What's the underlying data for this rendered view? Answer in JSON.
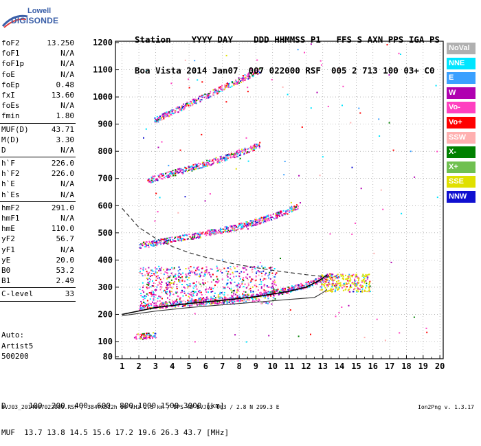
{
  "logo": {
    "line1": "Lowell",
    "line2": "DIGISONDE"
  },
  "header": {
    "line1": "Station    YYYY DAY    DDD HHMMSS P1   FFS S AXN PPS IGA PS",
    "line2": "Boa Vista 2014 Jan07  007 022000 RSF  005 2 713 100 03+ C0"
  },
  "params": [
    {
      "label": "foF2",
      "value": "13.250"
    },
    {
      "label": "foF1",
      "value": "N/A"
    },
    {
      "label": "foF1p",
      "value": "N/A"
    },
    {
      "label": "foE",
      "value": "N/A"
    },
    {
      "label": "foEp",
      "value": "0.48"
    },
    {
      "label": "fxI",
      "value": "13.60"
    },
    {
      "label": "foEs",
      "value": "N/A"
    },
    {
      "label": "fmin",
      "value": "1.80"
    },
    {
      "sep": true
    },
    {
      "label": "MUF(D)",
      "value": "43.71"
    },
    {
      "label": "M(D)",
      "value": "3.30"
    },
    {
      "label": "D",
      "value": "N/A"
    },
    {
      "sep": true
    },
    {
      "label": "h`F",
      "value": "226.0"
    },
    {
      "label": "h`F2",
      "value": "226.0"
    },
    {
      "label": "h`E",
      "value": "N/A"
    },
    {
      "label": "h`Es",
      "value": "N/A"
    },
    {
      "sep": true
    },
    {
      "label": "hmF2",
      "value": "291.0"
    },
    {
      "label": "hmF1",
      "value": "N/A"
    },
    {
      "label": "hmE",
      "value": "110.0"
    },
    {
      "label": "yF2",
      "value": "56.7"
    },
    {
      "label": "yF1",
      "value": "N/A"
    },
    {
      "label": "yE",
      "value": "20.0"
    },
    {
      "label": "B0",
      "value": "53.2"
    },
    {
      "label": "B1",
      "value": "2.49"
    },
    {
      "sep": true
    },
    {
      "label": "C-level",
      "value": "33"
    },
    {
      "sep": true
    }
  ],
  "auto": {
    "line1": "Auto:",
    "line2": "Artist5",
    "line3": "500200"
  },
  "legend": [
    {
      "name": "NoVal",
      "color": "#b0b0b0"
    },
    {
      "name": "NNE",
      "color": "#00e5ff"
    },
    {
      "name": "E",
      "color": "#3aa0ff"
    },
    {
      "name": "W",
      "color": "#b000b0"
    },
    {
      "name": "Vo-",
      "color": "#ff40c0"
    },
    {
      "name": "Vo+",
      "color": "#ff0000"
    },
    {
      "name": "SSW",
      "color": "#ffb0b0"
    },
    {
      "name": "X-",
      "color": "#008000"
    },
    {
      "name": "X+",
      "color": "#70c050"
    },
    {
      "name": "SSE",
      "color": "#e0e000"
    },
    {
      "name": "NNW",
      "color": "#1010d0"
    }
  ],
  "muf_table": {
    "line1": "D     100  200  400  600  800 1000 1500 3000 [km]",
    "line2": "MUF  13.7 13.8 14.5 15.6 17.2 19.6 26.3 43.7 [MHz]"
  },
  "footer": "BVJ03_2014007022000.RSF / 384fx512h 50 kHz 2.5 km / DPS-4D BVJ03 003 / 2.8 N 299.3 E",
  "version": "Ion2Png v. 1.3.17",
  "chart_data": {
    "type": "scatter",
    "xlabel": "",
    "ylabel": "",
    "xlim": [
      0.6,
      20.2
    ],
    "ylim": [
      80,
      1200
    ],
    "xticks": [
      1,
      2,
      3,
      4,
      5,
      6,
      7,
      8,
      9,
      10,
      11,
      12,
      13,
      14,
      15,
      16,
      17,
      18,
      19,
      20
    ],
    "yticks": [
      80,
      100,
      200,
      300,
      400,
      500,
      600,
      700,
      800,
      900,
      1000,
      1100,
      1200
    ],
    "grid": "dotted",
    "legend_position": "right",
    "traces": [
      {
        "name": "F2 1-hop",
        "start_x": 2.0,
        "end_x": 13.5,
        "y_start": 230,
        "y_end": 345,
        "curvature": 0.55
      },
      {
        "name": "F2 2-hop",
        "start_x": 2.0,
        "end_x": 11.5,
        "y_start": 455,
        "y_end": 600,
        "curvature": 0.3
      },
      {
        "name": "F2 3-hop",
        "start_x": 2.5,
        "end_x": 9.2,
        "y_start": 695,
        "y_end": 825,
        "curvature": 0.1
      },
      {
        "name": "F2 4-hop",
        "start_x": 2.9,
        "end_x": 9.2,
        "y_start": 915,
        "y_end": 1100,
        "curvature": 0.0
      },
      {
        "name": "Es",
        "start_x": 1.7,
        "end_x": 3.0,
        "y_start": 118,
        "y_end": 126,
        "curvature": 0.0
      }
    ],
    "profile": {
      "fitted_trace_x": [
        1.0,
        3,
        5,
        7,
        9,
        11,
        12,
        12.8,
        13.25
      ],
      "fitted_trace_y": [
        200,
        225,
        240,
        252,
        265,
        285,
        300,
        325,
        345
      ],
      "true_height_x": [
        1.0,
        3,
        5,
        7,
        9,
        11,
        12.5,
        13.0,
        13.25
      ],
      "true_height_y": [
        195,
        212,
        225,
        235,
        245,
        255,
        262,
        280,
        291
      ],
      "muf_curve_x": [
        1.0,
        2,
        3,
        4,
        5,
        6,
        7,
        8,
        9,
        10,
        11,
        12,
        13.6
      ],
      "muf_curve_y": [
        590,
        520,
        480,
        450,
        427,
        410,
        395,
        382,
        372,
        362,
        354,
        346,
        336
      ]
    }
  }
}
